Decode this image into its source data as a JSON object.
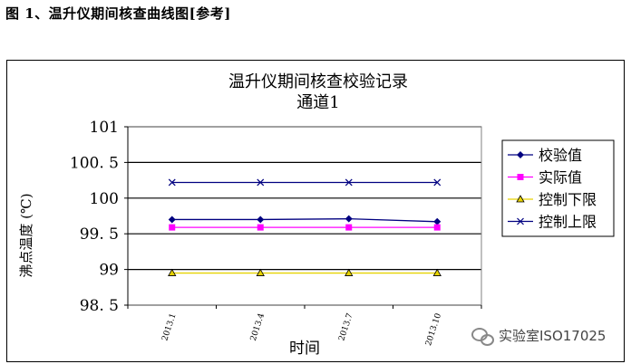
{
  "figure_caption": "图 1、温升仪期间核查曲线图[参考]",
  "watermark": "实验室ISO17025",
  "watermark_icon": "wechat-icon",
  "chart_data": {
    "type": "line",
    "title": "温升仪期间核查校验记录",
    "subtitle": "通道1",
    "xlabel": "时间",
    "ylabel": "沸点温度 (℃)",
    "categories": [
      "2013.1",
      "2013.4",
      "2013.7",
      "2013.10"
    ],
    "ylim": [
      98.5,
      101
    ],
    "yticks": [
      101,
      100.5,
      100,
      99.5,
      99,
      98.5
    ],
    "ytick_labels": [
      "101",
      "100. 5",
      "100",
      "99. 5",
      "99",
      "98. 5"
    ],
    "grid": true,
    "legend_position": "right",
    "series": [
      {
        "name": "校验值",
        "values": [
          99.7,
          99.7,
          99.71,
          99.67
        ],
        "color": "#000080",
        "marker": "diamond"
      },
      {
        "name": "实际值",
        "values": [
          99.59,
          99.59,
          99.59,
          99.59
        ],
        "color": "#ff00ff",
        "marker": "square"
      },
      {
        "name": "控制下限",
        "values": [
          98.95,
          98.95,
          98.95,
          98.95
        ],
        "color": "#e6d200",
        "marker": "triangle"
      },
      {
        "name": "控制上限",
        "values": [
          100.22,
          100.22,
          100.22,
          100.22
        ],
        "color": "#000080",
        "marker": "x"
      }
    ]
  }
}
